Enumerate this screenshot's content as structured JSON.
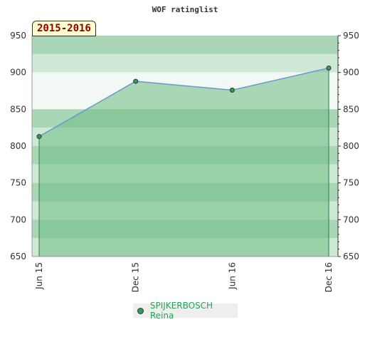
{
  "chart_data": {
    "type": "area",
    "title": "WOF ratinglist",
    "subtitle": "2015-2016",
    "categories": [
      "Jun 15",
      "Dec 15",
      "Jun 16",
      "Dec 16"
    ],
    "series": [
      {
        "name": "SPIJKERBOSCH Reina",
        "values": [
          813,
          888,
          876,
          906
        ]
      }
    ],
    "ylim": [
      650,
      950
    ],
    "yticks": [
      "650",
      "700",
      "750",
      "800",
      "850",
      "900",
      "950"
    ],
    "grid": true,
    "legend_position": "bottom-center"
  },
  "colors": {
    "area_fill": "#6dbb84",
    "line": "#6a98d0",
    "marker": "#2e9e5a",
    "band_light": "#f2f8f3",
    "band_mid": "#cfe8d6",
    "band_dark": "#a9d7b6"
  }
}
